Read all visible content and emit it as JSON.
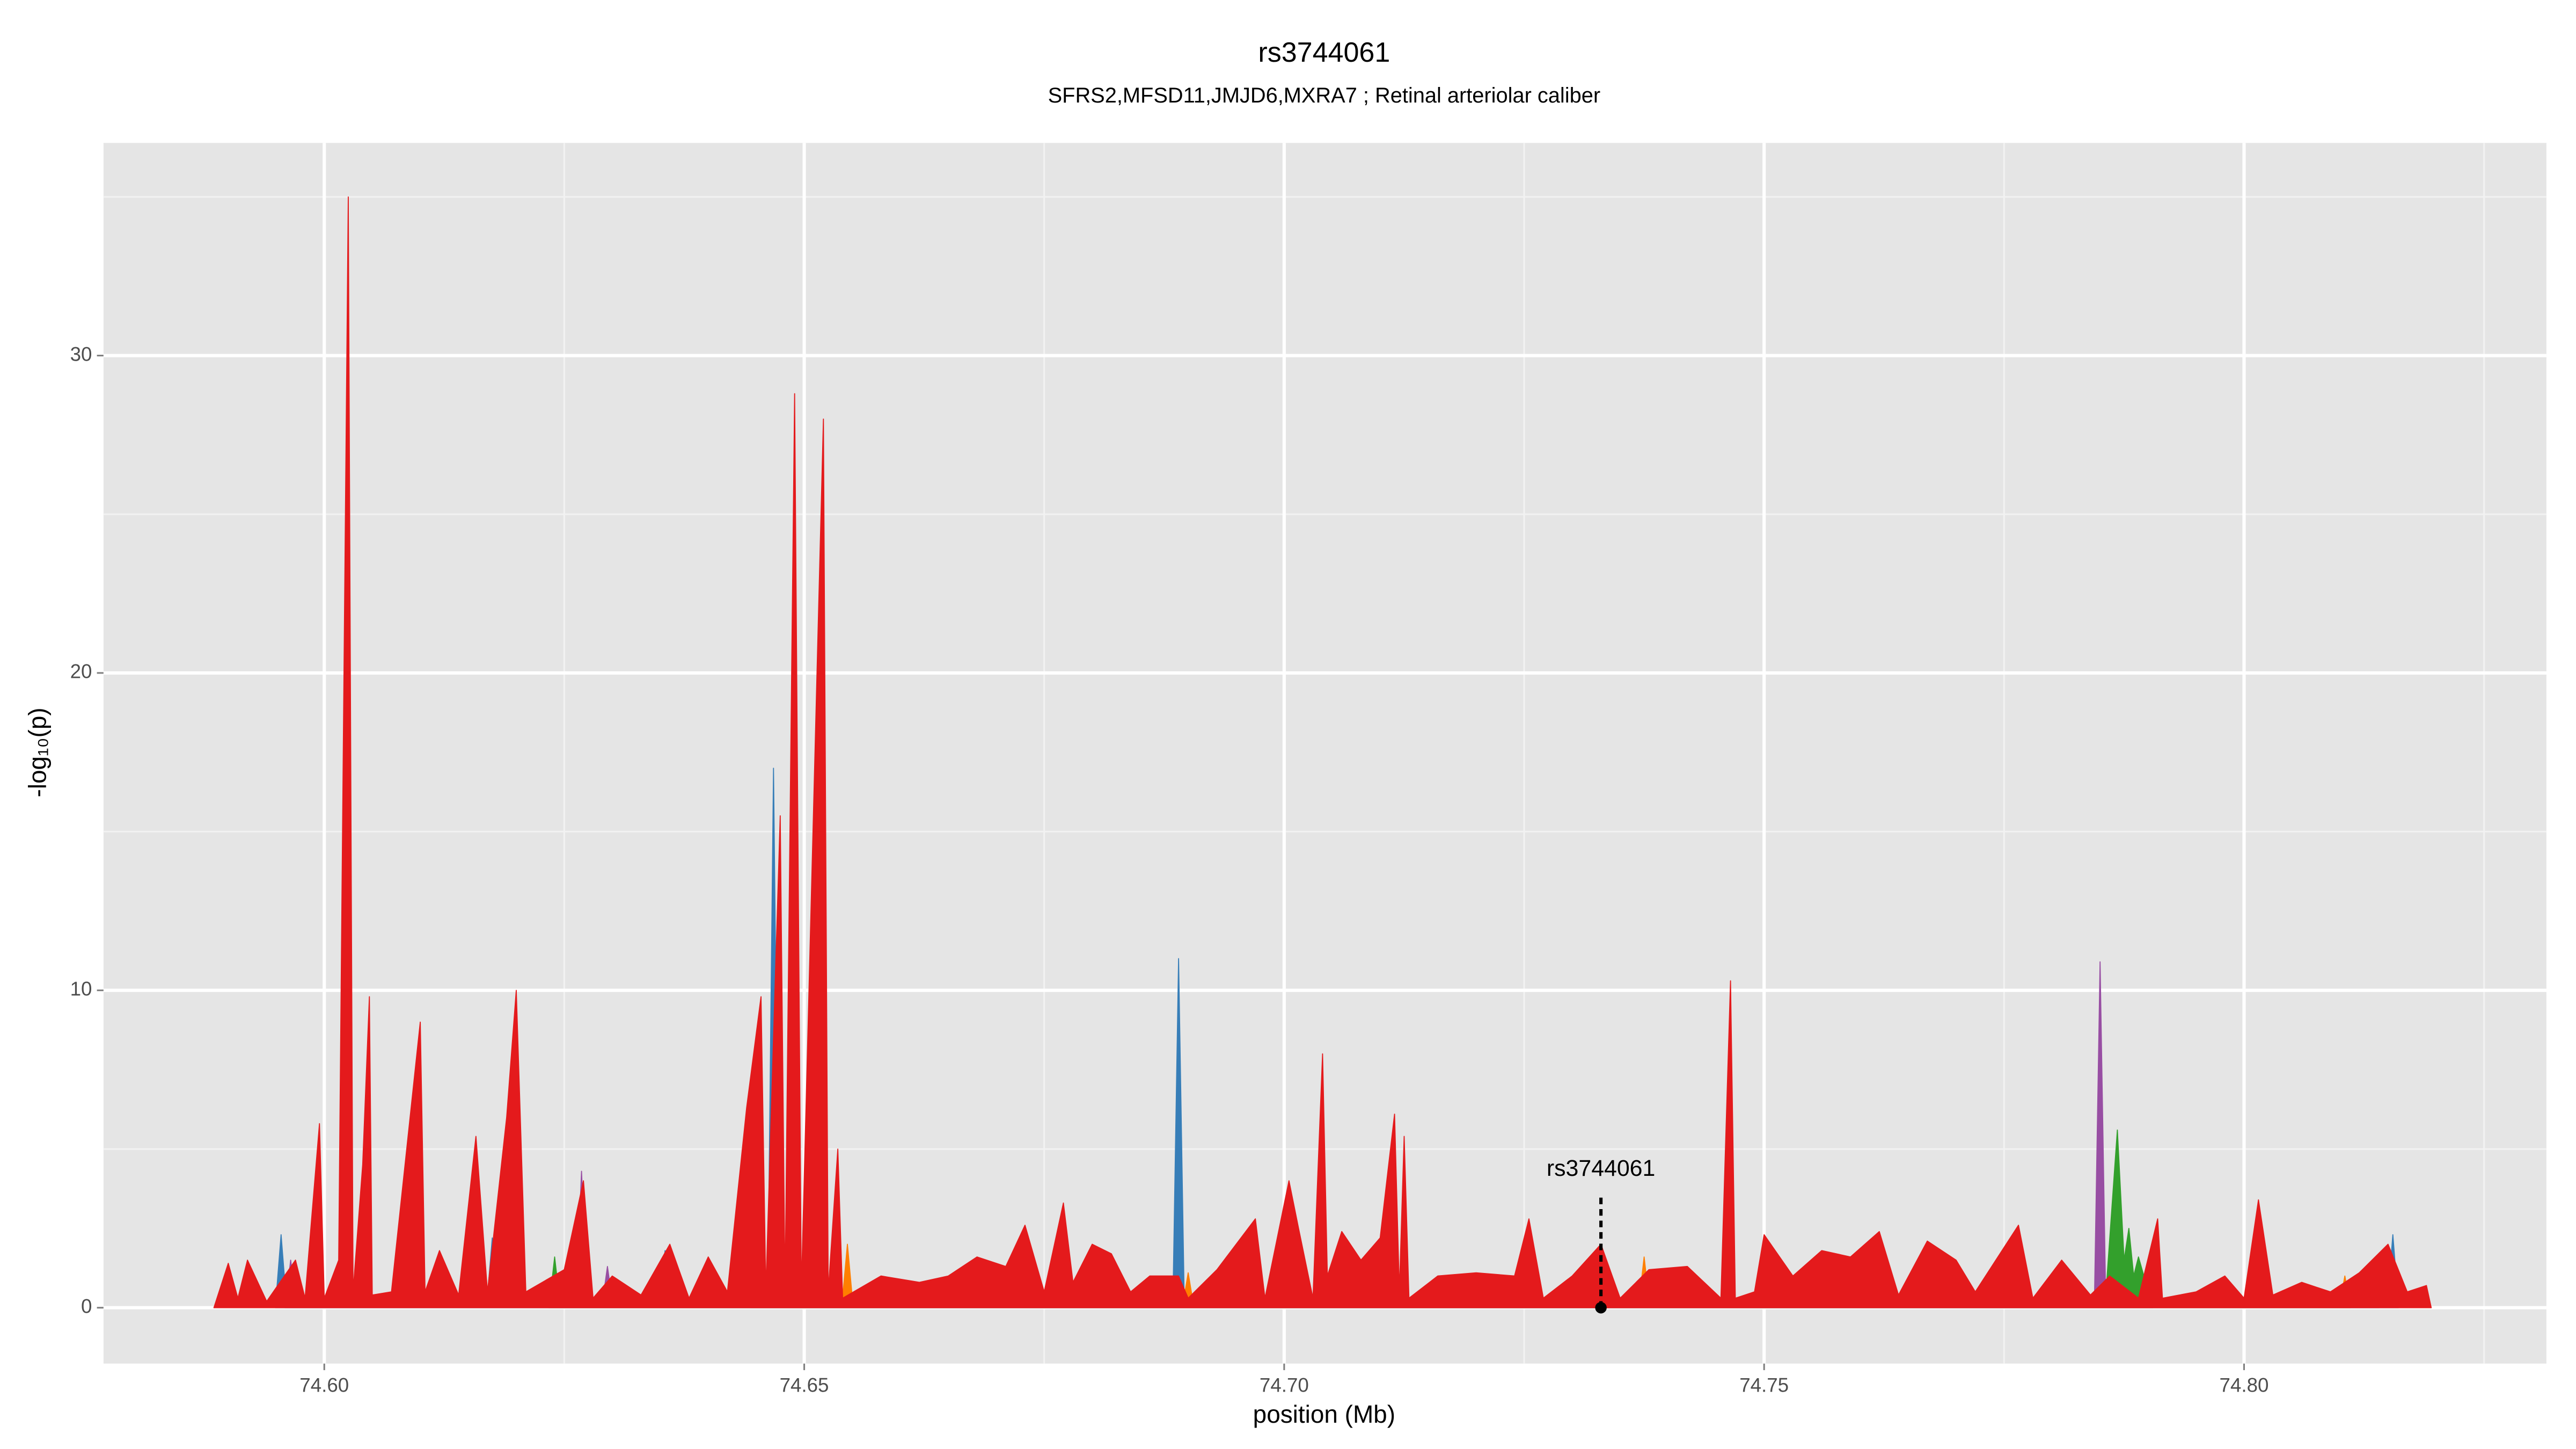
{
  "chart_data": {
    "type": "area",
    "title": "rs3744061",
    "subtitle": "SFRS2,MFSD11,JMJD6,MXRA7 ; Retinal arteriolar caliber",
    "xlabel": "position (Mb)",
    "ylabel": "-log₁₀(p)",
    "xlim": [
      74.577,
      74.8315
    ],
    "ylim": [
      -1.76,
      36.7
    ],
    "xticks": [
      {
        "value": 74.6,
        "label": "74.60"
      },
      {
        "value": 74.65,
        "label": "74.65"
      },
      {
        "value": 74.7,
        "label": "74.70"
      },
      {
        "value": 74.75,
        "label": "74.75"
      },
      {
        "value": 74.8,
        "label": "74.80"
      }
    ],
    "yticks": [
      0,
      10,
      20,
      30
    ],
    "grid": true,
    "series": [
      {
        "color": "#33a02c",
        "x": [
          74.6234,
          74.624,
          74.6246,
          74.7855,
          74.7868,
          74.7875,
          74.788,
          74.7885,
          74.789,
          74.7905
        ],
        "values": [
          0,
          1.6,
          0,
          0,
          5.6,
          1.5,
          2.5,
          1,
          1.6,
          0
        ]
      },
      {
        "color": "#ff7f00",
        "x": [
          74.6444,
          74.645,
          74.6456,
          74.6539,
          74.6545,
          74.6551,
          74.6894,
          74.69,
          74.6906,
          74.7369,
          74.7375,
          74.7381,
          74.8099,
          74.8105,
          74.8111
        ],
        "values": [
          0,
          2,
          0,
          0,
          2,
          0,
          0,
          1.1,
          0,
          0,
          1.6,
          0,
          0,
          1,
          0
        ]
      },
      {
        "color": "#984ea3",
        "x": [
          74.5959,
          74.5965,
          74.5971,
          74.6262,
          74.6268,
          74.6274,
          74.6289,
          74.6295,
          74.6301,
          74.7844,
          74.785,
          74.7856,
          74.8129,
          74.8135,
          74.8141
        ],
        "values": [
          0,
          1.5,
          0,
          0,
          4.3,
          0,
          0,
          1.3,
          0,
          0,
          10.9,
          0,
          0,
          1.5,
          0
        ]
      },
      {
        "color": "#377eb8",
        "x": [
          74.5949,
          74.5955,
          74.5961,
          74.6169,
          74.6175,
          74.6181,
          74.6349,
          74.6355,
          74.6361,
          74.6462,
          74.6468,
          74.6474,
          74.6884,
          74.689,
          74.6896,
          74.8149,
          74.8155,
          74.8161
        ],
        "values": [
          0,
          2.3,
          0,
          0,
          2.2,
          0,
          0,
          1.8,
          0,
          0,
          17,
          0,
          0,
          11,
          0,
          0,
          2.3,
          0
        ]
      },
      {
        "color": "#e41a1c",
        "x": [
          74.5885,
          74.59,
          74.591,
          74.592,
          74.594,
          74.597,
          74.598,
          74.5995,
          74.6,
          74.6015,
          74.6025,
          74.603,
          74.604,
          74.6047,
          74.605,
          74.607,
          74.61,
          74.6105,
          74.612,
          74.614,
          74.6158,
          74.617,
          74.619,
          74.62,
          74.621,
          74.625,
          74.627,
          74.628,
          74.63,
          74.633,
          74.636,
          74.638,
          74.64,
          74.642,
          74.644,
          74.6455,
          74.646,
          74.6475,
          74.648,
          74.649,
          74.6497,
          74.652,
          74.6525,
          74.6535,
          74.654,
          74.658,
          74.662,
          74.665,
          74.668,
          74.671,
          74.673,
          74.675,
          74.677,
          74.678,
          74.68,
          74.682,
          74.684,
          74.686,
          74.689,
          74.69,
          74.693,
          74.697,
          74.698,
          74.7005,
          74.7015,
          74.703,
          74.704,
          74.7045,
          74.706,
          74.708,
          74.71,
          74.7115,
          74.712,
          74.7125,
          74.713,
          74.716,
          74.72,
          74.724,
          74.7255,
          74.727,
          74.73,
          74.733,
          74.735,
          74.738,
          74.742,
          74.7455,
          74.7465,
          74.747,
          74.749,
          74.75,
          74.753,
          74.756,
          74.759,
          74.762,
          74.764,
          74.767,
          74.77,
          74.772,
          74.7765,
          74.778,
          74.781,
          74.784,
          74.786,
          74.789,
          74.791,
          74.7915,
          74.795,
          74.798,
          74.8,
          74.8015,
          74.803,
          74.806,
          74.809,
          74.812,
          74.815,
          74.817,
          74.819,
          74.8195
        ],
        "values": [
          0,
          1.4,
          0.3,
          1.5,
          0.2,
          1.5,
          0.3,
          5.8,
          0.3,
          1.5,
          35,
          0.5,
          4.5,
          9.8,
          0.4,
          0.5,
          9,
          0.5,
          1.8,
          0.4,
          5.4,
          0.5,
          6,
          10,
          0.5,
          1.2,
          4,
          0.3,
          1,
          0.4,
          2,
          0.3,
          1.6,
          0.5,
          6.3,
          9.8,
          0.5,
          15.5,
          0.5,
          28.8,
          0.5,
          28,
          0.5,
          5,
          0.3,
          1,
          0.8,
          1,
          1.6,
          1.3,
          2.6,
          0.5,
          3.3,
          0.8,
          2,
          1.7,
          0.5,
          1,
          1,
          0.3,
          1.2,
          2.8,
          0.3,
          4,
          2.5,
          0.3,
          8,
          1,
          2.4,
          1.5,
          2.2,
          6.1,
          0.5,
          5.4,
          0.3,
          1,
          1.1,
          1,
          2.8,
          0.3,
          1,
          2,
          0.3,
          1.2,
          1.3,
          0.3,
          10.3,
          0.3,
          0.5,
          2.3,
          1,
          1.8,
          1.6,
          2.4,
          0.4,
          2.1,
          1.5,
          0.5,
          2.6,
          0.3,
          1.5,
          0.4,
          1,
          0.3,
          2.8,
          0.3,
          0.5,
          1,
          0.3,
          3.4,
          0.4,
          0.8,
          0.5,
          1.1,
          2,
          0.5,
          0.7,
          0
        ]
      }
    ],
    "annotation": {
      "text": "rs3744061",
      "x": 74.733,
      "y": 0
    }
  }
}
